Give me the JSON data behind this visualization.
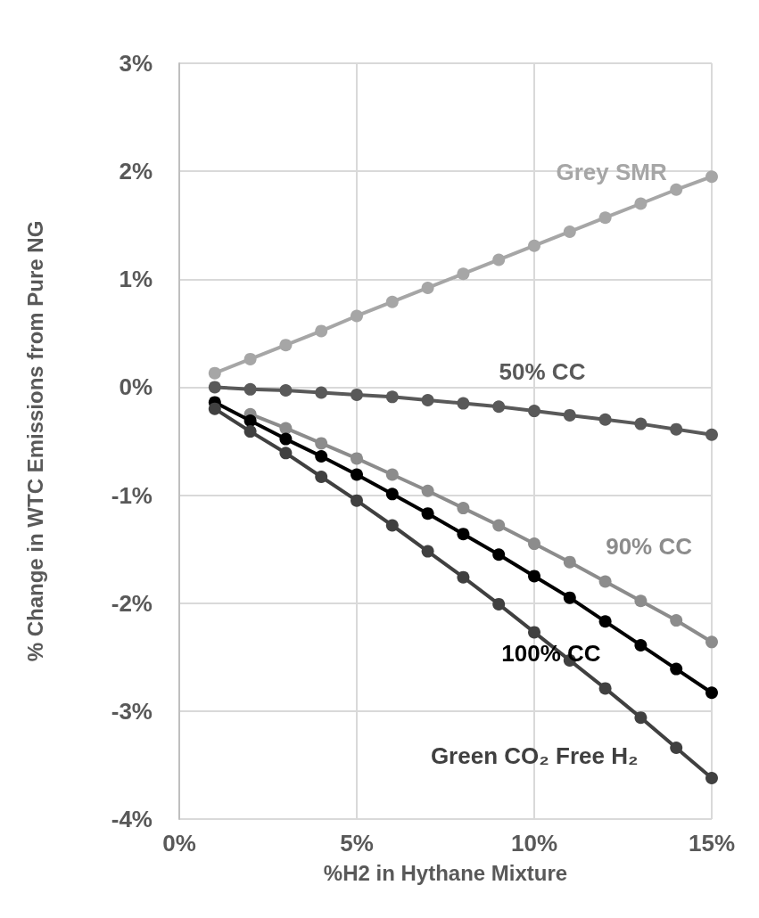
{
  "chart_data": {
    "type": "line",
    "xlabel": "%H2 in Hythane Mixture",
    "ylabel": "% Change in WTC Emissions from Pure NG",
    "x": [
      1,
      2,
      3,
      4,
      5,
      6,
      7,
      8,
      9,
      10,
      11,
      12,
      13,
      14,
      15
    ],
    "series": [
      {
        "name": "Grey SMR",
        "color": "#a6a6a6",
        "values": [
          0.13,
          0.26,
          0.39,
          0.52,
          0.66,
          0.79,
          0.92,
          1.05,
          1.18,
          1.31,
          1.44,
          1.57,
          1.7,
          1.83,
          1.95
        ]
      },
      {
        "name": "50% CC",
        "color": "#595959",
        "values": [
          0,
          -0.02,
          -0.03,
          -0.05,
          -0.07,
          -0.09,
          -0.12,
          -0.15,
          -0.18,
          -0.22,
          -0.26,
          -0.3,
          -0.34,
          -0.39,
          -0.44
        ]
      },
      {
        "name": "90% CC",
        "color": "#8c8c8c",
        "values": [
          null,
          -0.25,
          -0.38,
          -0.52,
          -0.66,
          -0.81,
          -0.96,
          -1.12,
          -1.28,
          -1.45,
          -1.62,
          -1.8,
          -1.98,
          -2.16,
          -2.36
        ]
      },
      {
        "name": "100% CC",
        "color": "#000000",
        "values": [
          -0.14,
          -0.31,
          -0.48,
          -0.64,
          -0.81,
          -0.99,
          -1.17,
          -1.36,
          -1.55,
          -1.75,
          -1.95,
          -2.17,
          -2.39,
          -2.61,
          -2.83
        ]
      },
      {
        "name": "Green CO₂ Free H₂",
        "color": "#404040",
        "values": [
          -0.2,
          -0.41,
          -0.61,
          -0.83,
          -1.05,
          -1.28,
          -1.52,
          -1.76,
          -2.01,
          -2.27,
          -2.53,
          -2.79,
          -3.06,
          -3.34,
          -3.62
        ]
      }
    ],
    "xlim": [
      0,
      15
    ],
    "xticks": [
      {
        "value": 0,
        "label": "0%"
      },
      {
        "value": 5,
        "label": "5%"
      },
      {
        "value": 10,
        "label": "10%"
      },
      {
        "value": 15,
        "label": "15%"
      }
    ],
    "ylim": [
      -4,
      3
    ],
    "yticks": [
      {
        "value": -4,
        "label": "-4%"
      },
      {
        "value": -3,
        "label": "-3%"
      },
      {
        "value": -2,
        "label": "-2%"
      },
      {
        "value": -1,
        "label": "-1%"
      },
      {
        "value": 0,
        "label": "0%"
      },
      {
        "value": 1,
        "label": "1%"
      },
      {
        "value": 2,
        "label": "2%"
      },
      {
        "value": 3,
        "label": "3%"
      }
    ],
    "grid": true,
    "legend": false,
    "marker": "circle",
    "line_style": "solid"
  }
}
